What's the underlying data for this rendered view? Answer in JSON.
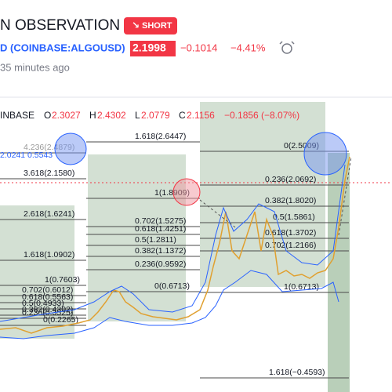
{
  "header": {
    "title": "N OBSERVATION",
    "badge": "SHORT",
    "symbol": "D (COINBASE:ALGOUSD)",
    "price": "2.1998",
    "change": "−0.1014",
    "change_pct": "−4.41%",
    "updated": "35 minutes ago"
  },
  "ohlc": {
    "exchange": "INBASE",
    "open_label": "O",
    "open": "2.3027",
    "high_label": "H",
    "high": "2.4302",
    "low_label": "L",
    "low": "2.0779",
    "close_label": "C",
    "close": "2.1156",
    "change": "−0.1856 (−8.07%)"
  },
  "fib_labels": [
    "4.236(2.4879)",
    "2.0241 0.5543",
    "3.618(2.1580)",
    "2.618(1.6241)",
    "1.618(1.0902)",
    "1(0.7603)",
    "0.702(0.6012)",
    "0.618(0.5563)",
    "0.5(0.4933)",
    "0.382(0.4302)",
    "0.236(0.3525)",
    "0(0.2265)",
    "1.618(2.6447)",
    "1(1.8909)",
    "0.702(1.5275)",
    "0.618(1.4251)",
    "0.5(1.2811)",
    "0.382(1.1372)",
    "0.236(0.9592)",
    "0(0.6713)",
    "0(2.5009)",
    "0.236(2.0692)",
    "0.382(1.8020)",
    "0.5(1.5861)",
    "0.618(1.3702)",
    "0.702(1.2166)",
    "1(0.6713)",
    "1.618(−0.4593)"
  ]
}
